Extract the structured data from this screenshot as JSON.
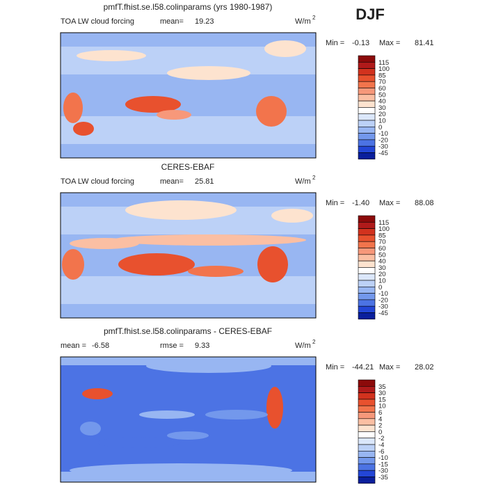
{
  "season": "DJF",
  "panels": [
    {
      "title": "pmfT.fhist.se.l58.colinparams (yrs 1980-1987)",
      "left_label": "TOA LW cloud forcing",
      "stat1_label": "mean=",
      "stat1": "19.23",
      "units": "W/m",
      "units_power": "2",
      "min_label": "Min =",
      "min": "-0.13",
      "max_label": "Max =",
      "max": "81.41",
      "levels": [
        "115",
        "100",
        "85",
        "70",
        "60",
        "50",
        "40",
        "30",
        "20",
        "10",
        "0",
        "-10",
        "-20",
        "-30",
        "-45"
      ],
      "colors": [
        "#8c0a0a",
        "#b01a1a",
        "#d2321e",
        "#e8512e",
        "#f2744c",
        "#f7987a",
        "#fbbfa3",
        "#fde3cf",
        "#ffffff",
        "#dbe7fb",
        "#bcd1f7",
        "#98b6f2",
        "#7398ec",
        "#4c73e4",
        "#2346d6",
        "#0a1f9c"
      ]
    },
    {
      "title": "CERES-EBAF",
      "left_label": "TOA LW cloud forcing",
      "stat1_label": "mean=",
      "stat1": "25.81",
      "units": "W/m",
      "units_power": "2",
      "min_label": "Min =",
      "min": "-1.40",
      "max_label": "Max =",
      "max": "88.08",
      "levels": [
        "115",
        "100",
        "85",
        "70",
        "60",
        "50",
        "40",
        "30",
        "20",
        "10",
        "0",
        "-10",
        "-20",
        "-30",
        "-45"
      ],
      "colors": [
        "#8c0a0a",
        "#b01a1a",
        "#d2321e",
        "#e8512e",
        "#f2744c",
        "#f7987a",
        "#fbbfa3",
        "#fde3cf",
        "#ffffff",
        "#dbe7fb",
        "#bcd1f7",
        "#98b6f2",
        "#7398ec",
        "#4c73e4",
        "#2346d6",
        "#0a1f9c"
      ]
    },
    {
      "title": "pmfT.fhist.se.l58.colinparams - CERES-EBAF",
      "left_label": "mean =",
      "left_value": "-6.58",
      "stat1_label": "rmse =",
      "stat1": "9.33",
      "units": "W/m",
      "units_power": "2",
      "min_label": "Min =",
      "min": "-44.21",
      "max_label": "Max =",
      "max": "28.02",
      "levels": [
        "35",
        "30",
        "15",
        "10",
        "6",
        "4",
        "2",
        "0",
        "-2",
        "-4",
        "-6",
        "-10",
        "-15",
        "-30",
        "-35"
      ],
      "colors": [
        "#8c0a0a",
        "#b01a1a",
        "#d2321e",
        "#e8512e",
        "#f2744c",
        "#f7987a",
        "#fbbfa3",
        "#fde3cf",
        "#ffffff",
        "#dbe7fb",
        "#bcd1f7",
        "#98b6f2",
        "#7398ec",
        "#4c73e4",
        "#2346d6",
        "#0a1f9c"
      ]
    }
  ]
}
